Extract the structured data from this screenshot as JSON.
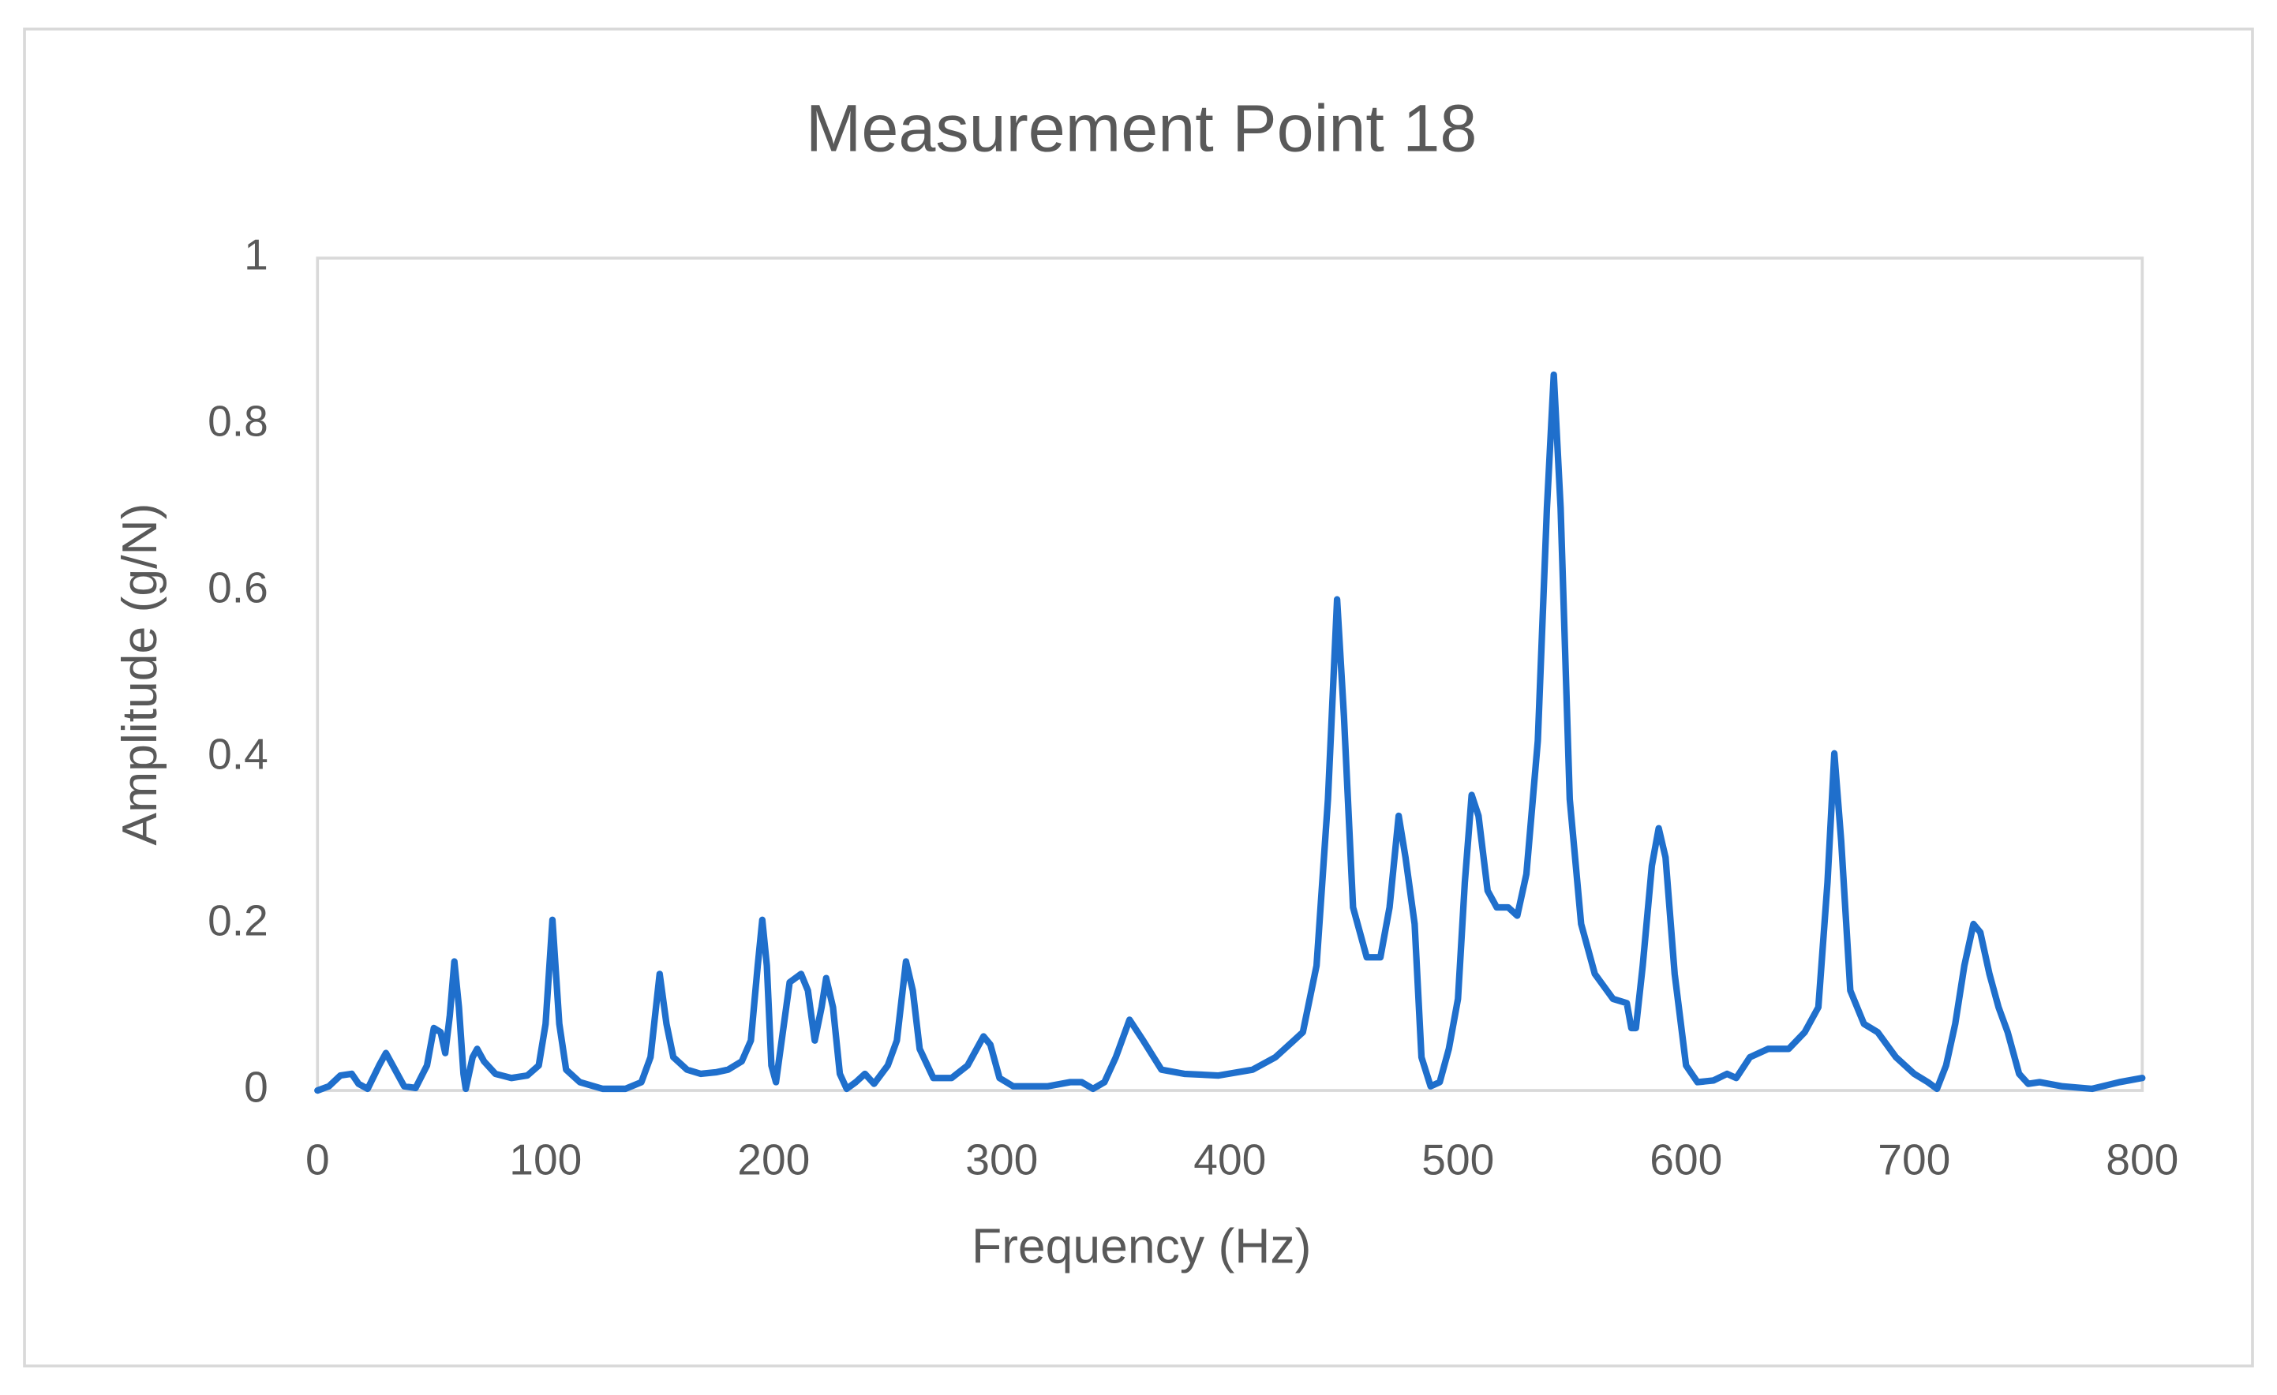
{
  "chart_data": {
    "type": "line",
    "title": "Measurement Point 18",
    "x_label": "Frequency (Hz)",
    "y_label": "Amplitude (g/N)",
    "x": [
      0,
      5,
      10,
      15,
      18,
      22,
      27,
      30,
      33,
      38,
      43,
      48,
      51,
      54,
      56,
      58,
      60,
      62,
      64,
      65,
      68,
      70,
      73,
      78,
      85,
      92,
      97,
      100,
      103,
      106,
      109,
      115,
      125,
      135,
      142,
      146,
      150,
      153,
      156,
      162,
      168,
      175,
      180,
      186,
      190,
      193,
      195,
      197,
      199,
      201,
      204,
      207,
      212,
      215,
      218,
      221,
      223,
      226,
      229,
      232,
      236,
      240,
      244,
      250,
      254,
      258,
      261,
      264,
      270,
      278,
      285,
      292,
      295,
      299,
      305,
      320,
      330,
      335,
      340,
      345,
      350,
      356,
      362,
      370,
      380,
      395,
      410,
      420,
      428,
      432,
      438,
      443,
      447,
      450,
      454,
      460,
      466,
      470,
      474,
      477,
      481,
      484,
      488,
      492,
      496,
      500,
      503,
      506,
      509,
      513,
      517,
      522,
      526,
      530,
      535,
      539,
      542,
      545,
      549,
      554,
      560,
      568,
      574,
      576,
      578,
      581,
      585,
      588,
      591,
      595,
      600,
      605,
      612,
      618,
      622,
      628,
      636,
      645,
      652,
      658,
      662,
      665,
      668,
      672,
      678,
      684,
      692,
      700,
      706,
      710,
      714,
      718,
      722,
      726,
      729,
      733,
      737,
      741,
      746,
      750,
      755,
      765,
      778,
      790,
      800
    ],
    "series": [
      {
        "name": "Measurement Point 18",
        "color": "#1f6fcc",
        "values": [
          0,
          0.005,
          0.018,
          0.02,
          0.008,
          0.002,
          0.03,
          0.045,
          0.03,
          0.005,
          0.003,
          0.03,
          0.075,
          0.07,
          0.045,
          0.09,
          0.155,
          0.1,
          0.02,
          0.002,
          0.04,
          0.05,
          0.035,
          0.02,
          0.015,
          0.018,
          0.03,
          0.08,
          0.205,
          0.08,
          0.025,
          0.01,
          0.002,
          0.002,
          0.01,
          0.04,
          0.14,
          0.08,
          0.04,
          0.025,
          0.02,
          0.022,
          0.025,
          0.035,
          0.06,
          0.15,
          0.205,
          0.15,
          0.03,
          0.01,
          0.07,
          0.13,
          0.14,
          0.12,
          0.06,
          0.1,
          0.135,
          0.1,
          0.02,
          0.002,
          0.01,
          0.02,
          0.008,
          0.03,
          0.06,
          0.155,
          0.12,
          0.05,
          0.015,
          0.015,
          0.03,
          0.065,
          0.055,
          0.015,
          0.005,
          0.005,
          0.01,
          0.01,
          0.002,
          0.01,
          0.04,
          0.085,
          0.06,
          0.025,
          0.02,
          0.018,
          0.025,
          0.04,
          0.06,
          0.07,
          0.15,
          0.35,
          0.59,
          0.45,
          0.22,
          0.16,
          0.16,
          0.22,
          0.33,
          0.28,
          0.2,
          0.04,
          0.005,
          0.01,
          0.05,
          0.11,
          0.25,
          0.355,
          0.33,
          0.24,
          0.22,
          0.22,
          0.21,
          0.26,
          0.42,
          0.7,
          0.86,
          0.7,
          0.35,
          0.2,
          0.14,
          0.11,
          0.105,
          0.075,
          0.075,
          0.15,
          0.27,
          0.315,
          0.28,
          0.14,
          0.03,
          0.01,
          0.012,
          0.02,
          0.015,
          0.04,
          0.05,
          0.05,
          0.07,
          0.1,
          0.25,
          0.405,
          0.3,
          0.12,
          0.08,
          0.07,
          0.04,
          0.02,
          0.01,
          0.002,
          0.03,
          0.08,
          0.15,
          0.2,
          0.19,
          0.14,
          0.1,
          0.07,
          0.02,
          0.008,
          0.01,
          0.005,
          0.002,
          0.01,
          0.015
        ]
      }
    ],
    "xlim": [
      0,
      800
    ],
    "xticks": [
      0,
      100,
      200,
      300,
      400,
      500,
      600,
      700,
      800
    ],
    "ylim": [
      0,
      1
    ],
    "yticks": [
      0,
      0.2,
      0.4,
      0.6,
      0.8,
      1
    ],
    "grid": false
  }
}
